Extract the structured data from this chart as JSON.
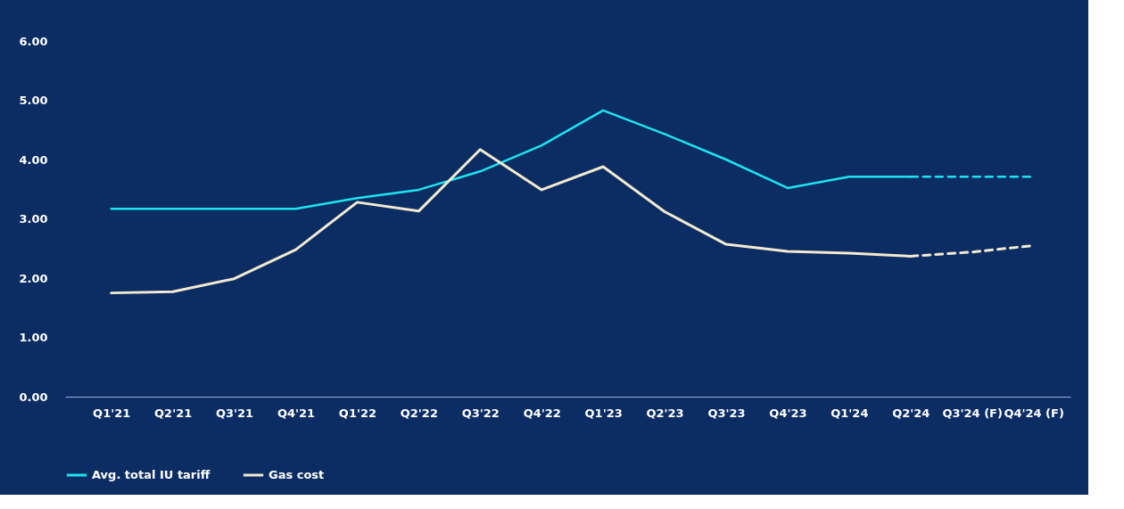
{
  "chart_data": {
    "type": "line",
    "categories": [
      "Q1'21",
      "Q2'21",
      "Q3'21",
      "Q4'21",
      "Q1'22",
      "Q2'22",
      "Q3'22",
      "Q4'22",
      "Q1'23",
      "Q2'23",
      "Q3'23",
      "Q4'23",
      "Q1'24",
      "Q2'24",
      "Q3'24 (F)",
      "Q4'24 (F)"
    ],
    "series": [
      {
        "name": "Avg. total IU tariff",
        "color": "#1ee3ef",
        "line_style": "solid",
        "values": [
          3.17,
          3.17,
          3.17,
          3.17,
          3.35,
          3.49,
          3.8,
          4.24,
          4.83,
          4.43,
          4.0,
          3.52,
          3.71,
          3.71,
          null,
          null
        ]
      },
      {
        "name": "Gas cost",
        "color": "#f3ead0",
        "line_style": "solid",
        "values": [
          1.75,
          1.77,
          1.99,
          2.48,
          3.28,
          3.13,
          4.17,
          3.49,
          3.88,
          3.12,
          2.57,
          2.45,
          2.42,
          2.37,
          null,
          null
        ]
      },
      {
        "color": "#1ee3ef",
        "line_style": "dashed",
        "values": [
          null,
          null,
          null,
          null,
          null,
          null,
          null,
          null,
          null,
          null,
          null,
          null,
          null,
          3.71,
          3.71,
          3.71
        ]
      },
      {
        "color": "#f3ead0",
        "line_style": "dashed",
        "values": [
          null,
          null,
          null,
          null,
          null,
          null,
          null,
          null,
          null,
          null,
          null,
          null,
          null,
          2.37,
          2.44,
          2.55
        ]
      }
    ],
    "ylim": [
      0,
      6
    ],
    "yticks": [
      {
        "value": 0,
        "label": "0.00"
      },
      {
        "value": 1,
        "label": "1.00"
      },
      {
        "value": 2,
        "label": "2.00"
      },
      {
        "value": 3,
        "label": "3.00"
      },
      {
        "value": 4,
        "label": "4.00"
      },
      {
        "value": 5,
        "label": "5.00"
      },
      {
        "value": 6,
        "label": "6.00"
      }
    ],
    "grid": false,
    "legend": "bottom",
    "marker": "none"
  }
}
